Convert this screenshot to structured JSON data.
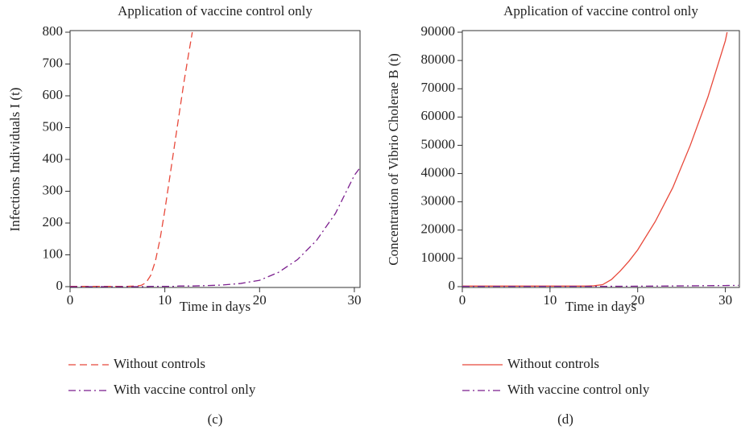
{
  "chart_data": [
    {
      "type": "line",
      "title": "Application of vaccine control only",
      "xlabel": "Time in days",
      "ylabel": "Infections Individuals I (t)",
      "caption": "(c)",
      "x": [
        0,
        2,
        4,
        6,
        7,
        7.5,
        8,
        8.5,
        9,
        9.5,
        10,
        10.5,
        11,
        11.5,
        12,
        12.5,
        12.9,
        14,
        16,
        18,
        20,
        22,
        24,
        26,
        28,
        30,
        30.5
      ],
      "series": [
        {
          "name": "Without controls",
          "color": "#e8483a",
          "linestyle": "dashed",
          "values": [
            1,
            1,
            1,
            1,
            2,
            4,
            12,
            35,
            80,
            150,
            240,
            340,
            440,
            540,
            640,
            730,
            800,
            null,
            null,
            null,
            null,
            null,
            null,
            null,
            null,
            null,
            null
          ]
        },
        {
          "name": "With vaccine control only",
          "color": "#7b1f8e",
          "linestyle": "dashdot",
          "values": [
            0,
            0,
            0,
            0,
            0,
            0,
            0,
            1,
            1,
            1,
            1,
            1,
            1,
            2,
            2,
            2,
            2,
            3,
            5,
            10,
            20,
            45,
            85,
            145,
            230,
            350,
            370
          ]
        }
      ],
      "xlim": [
        0,
        30.6
      ],
      "ylim": [
        0,
        800
      ],
      "xticks": [
        0,
        10,
        20,
        30
      ],
      "yticks": [
        0,
        100,
        200,
        300,
        400,
        500,
        600,
        700,
        800
      ]
    },
    {
      "type": "line",
      "title": "Application of vaccine control only",
      "xlabel": "Time in days",
      "ylabel": "Concentration of Vibrio Cholerae B (t)",
      "caption": "(d)",
      "x": [
        0,
        5,
        10,
        14,
        15,
        16,
        17,
        18,
        19,
        20,
        22,
        24,
        26,
        28,
        30,
        30.2,
        31.5
      ],
      "series": [
        {
          "name": "Without controls",
          "color": "#e8483a",
          "linestyle": "solid",
          "values": [
            200,
            200,
            200,
            200,
            300,
            700,
            2500,
            5500,
            9000,
            13000,
            23000,
            35000,
            50000,
            67000,
            87000,
            90000,
            null
          ]
        },
        {
          "name": "With vaccine control only",
          "color": "#7b1f8e",
          "linestyle": "dashdot",
          "values": [
            100,
            100,
            100,
            100,
            100,
            100,
            120,
            130,
            150,
            160,
            200,
            250,
            300,
            350,
            400,
            410,
            450
          ]
        }
      ],
      "xlim": [
        0,
        31.6
      ],
      "ylim": [
        0,
        90000
      ],
      "xticks": [
        0,
        10,
        20,
        30
      ],
      "yticks": [
        0,
        10000,
        20000,
        30000,
        40000,
        50000,
        60000,
        70000,
        80000,
        90000
      ]
    }
  ]
}
